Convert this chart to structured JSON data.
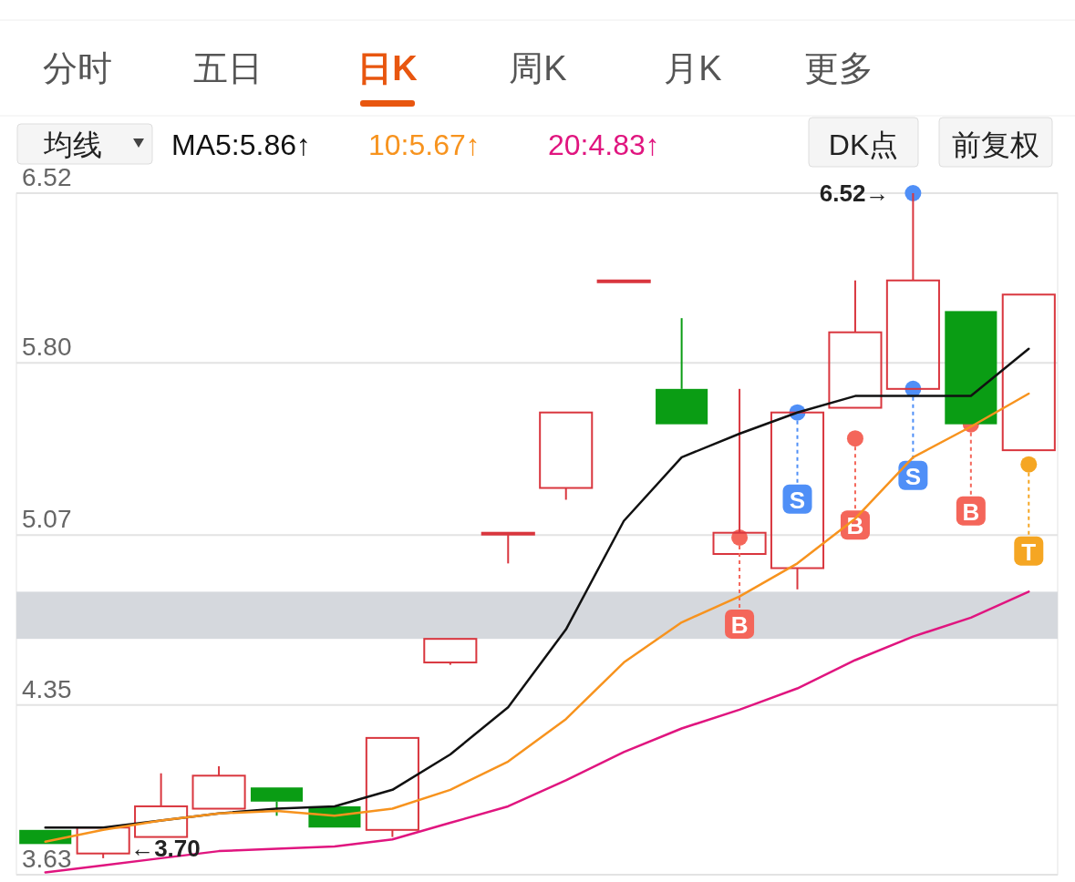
{
  "chart_data": {
    "type": "candlestick",
    "categories": [
      null,
      null,
      null,
      null,
      null,
      null,
      null,
      null,
      null,
      null,
      null,
      null,
      null,
      null,
      null,
      null,
      null,
      null
    ],
    "ohlc": [
      [
        3.82,
        3.82,
        3.76,
        3.76
      ],
      [
        3.72,
        3.83,
        3.7,
        3.83
      ],
      [
        3.79,
        4.06,
        3.79,
        3.92
      ],
      [
        3.91,
        4.09,
        3.91,
        4.05
      ],
      [
        4.0,
        4.0,
        3.88,
        3.94
      ],
      [
        3.92,
        3.92,
        3.83,
        3.83
      ],
      [
        3.82,
        4.21,
        3.79,
        4.21
      ],
      [
        4.53,
        4.63,
        4.52,
        4.63
      ],
      [
        5.08,
        5.08,
        4.95,
        5.08
      ],
      [
        5.27,
        5.59,
        5.22,
        5.59
      ],
      [
        6.15,
        6.15,
        6.15,
        6.15
      ],
      [
        5.69,
        5.99,
        5.54,
        5.54
      ],
      [
        4.99,
        5.69,
        4.99,
        5.08
      ],
      [
        4.93,
        5.59,
        4.84,
        5.59
      ],
      [
        5.61,
        6.15,
        5.61,
        5.93
      ],
      [
        5.69,
        6.52,
        5.69,
        6.15
      ],
      [
        6.02,
        6.02,
        5.54,
        5.54
      ],
      [
        5.43,
        6.09,
        5.43,
        6.09
      ]
    ],
    "series": [
      {
        "name": "MA5:5.86↑",
        "type": "line",
        "color": "#111111",
        "values": [
          3.83,
          3.83,
          3.86,
          3.89,
          3.91,
          3.92,
          3.99,
          4.14,
          4.34,
          4.67,
          5.13,
          5.4,
          5.5,
          5.59,
          5.66,
          5.66,
          5.66,
          5.86
        ]
      },
      {
        "name": "10:5.67↑",
        "type": "line",
        "color": "#f7931e",
        "values": [
          3.77,
          3.82,
          3.86,
          3.89,
          3.9,
          3.88,
          3.91,
          3.99,
          4.11,
          4.29,
          4.53,
          4.7,
          4.81,
          4.95,
          5.14,
          5.4,
          5.53,
          5.67
        ]
      },
      {
        "name": "20:4.83↑",
        "type": "line",
        "color": "#e0157f",
        "values": [
          3.64,
          3.67,
          3.7,
          3.73,
          3.74,
          3.75,
          3.78,
          3.85,
          3.92,
          4.03,
          4.15,
          4.25,
          4.33,
          4.42,
          4.54,
          4.64,
          4.72,
          4.83
        ]
      },
      {
        "type": "scatter",
        "values": [
          null,
          null,
          null,
          null,
          null,
          null,
          null,
          null,
          null,
          null,
          null,
          null,
          5.06,
          5.59,
          5.48,
          5.69,
          5.54,
          5.37
        ],
        "colors": [
          null,
          null,
          null,
          null,
          null,
          null,
          null,
          null,
          null,
          null,
          null,
          null,
          "#f4665a",
          "#4f8ff7",
          "#f4665a",
          "#4f8ff7",
          "#f4665a",
          "#f5a623"
        ],
        "value_labels": [
          null,
          null,
          null,
          null,
          null,
          null,
          null,
          null,
          null,
          null,
          null,
          null,
          "B",
          "S",
          "B",
          "S",
          "B",
          "T"
        ]
      },
      {
        "type": "scatter",
        "color": "#4f8ff7",
        "values": [
          null,
          null,
          null,
          null,
          null,
          null,
          null,
          null,
          null,
          null,
          null,
          null,
          null,
          null,
          null,
          6.52,
          null,
          null
        ]
      }
    ],
    "ylim": [
      3.63,
      6.52
    ],
    "yticks": [
      3.63,
      4.35,
      5.07,
      {
        "value": 5.8,
        "label": "5.80"
      },
      6.52
    ],
    "grid": "y",
    "legend": "top",
    "bands": [
      {
        "axis": "y",
        "from": 4.63,
        "to": 4.83,
        "color": "#d5d8dd"
      }
    ],
    "annotations": [
      "分时",
      "五日",
      "日K",
      "周K",
      "月K",
      "更多",
      "均线",
      "DK点",
      "前复权",
      "6.52→",
      "←3.70"
    ]
  }
}
